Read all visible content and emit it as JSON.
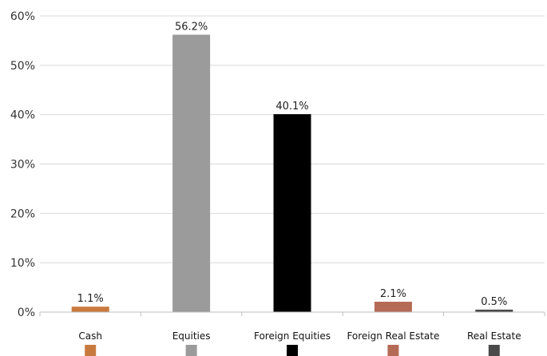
{
  "chart_data": {
    "type": "bar",
    "categories": [
      "Cash",
      "Equities",
      "Foreign Equities",
      "Foreign Real Estate",
      "Real Estate"
    ],
    "values": [
      1.1,
      56.2,
      40.1,
      2.1,
      0.5
    ],
    "data_labels": [
      "1.1%",
      "56.2%",
      "40.1%",
      "2.1%",
      "0.5%"
    ],
    "colors": [
      "#c87a3e",
      "#9b9b9b",
      "#000000",
      "#b56a55",
      "#4a4a4a"
    ],
    "title": "",
    "xlabel": "",
    "ylabel": "",
    "ylim": [
      0,
      60
    ],
    "yticks": [
      0,
      10,
      20,
      30,
      40,
      50,
      60
    ],
    "ytick_labels": [
      "0%",
      "10%",
      "20%",
      "30%",
      "40%",
      "50%",
      "60%"
    ],
    "grid": true,
    "legend": "color markers below category labels"
  }
}
